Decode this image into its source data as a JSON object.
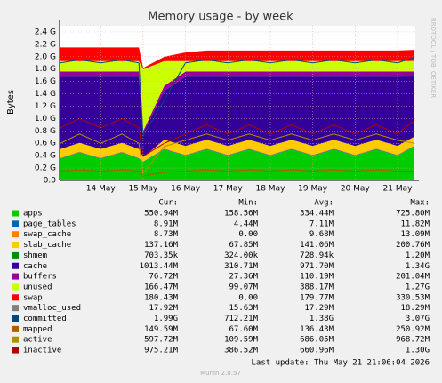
{
  "chart_data": {
    "type": "stacked-area",
    "title": "Memory usage - by week",
    "y_label": "Bytes",
    "side_label": "RRDTOOL / TOBI OETIKER",
    "stats_headers": [
      "Cur:",
      "Min:",
      "Avg:",
      "Max:"
    ],
    "last_update": "Last update: Thu May 21 21:06:04 2026",
    "footer": "Munin 2.0.57",
    "grid": true,
    "xlim": [
      13.03,
      21.42
    ],
    "xticks": [
      {
        "value": 14,
        "label": "14 May"
      },
      {
        "value": 15,
        "label": "15 May"
      },
      {
        "value": 16,
        "label": "16 May"
      },
      {
        "value": 17,
        "label": "17 May"
      },
      {
        "value": 18,
        "label": "18 May"
      },
      {
        "value": 19,
        "label": "19 May"
      },
      {
        "value": 20,
        "label": "20 May"
      },
      {
        "value": 21,
        "label": "21 May"
      }
    ],
    "ylim": [
      0,
      2.5
    ],
    "yticks": [
      {
        "value": 0,
        "label": "0.0"
      },
      {
        "value": 0.2,
        "label": "0.2 G"
      },
      {
        "value": 0.4,
        "label": "0.4 G"
      },
      {
        "value": 0.6,
        "label": "0.6 G"
      },
      {
        "value": 0.8,
        "label": "0.8 G"
      },
      {
        "value": 1.0,
        "label": "1.0 G"
      },
      {
        "value": 1.2,
        "label": "1.2 G"
      },
      {
        "value": 1.4,
        "label": "1.4 G"
      },
      {
        "value": 1.6,
        "label": "1.6 G"
      },
      {
        "value": 1.8,
        "label": "1.8 G"
      },
      {
        "value": 2.0,
        "label": "2.0 G"
      },
      {
        "value": 2.2,
        "label": "2.2 G"
      },
      {
        "value": 2.4,
        "label": "2.4 G"
      }
    ],
    "x": [
      13.05,
      13.5,
      14,
      14.5,
      14.9,
      15.0,
      15.5,
      16,
      16.5,
      17,
      17.5,
      18,
      18.5,
      19,
      19.5,
      20,
      20.5,
      21,
      21.4
    ],
    "series": [
      {
        "name": "apps",
        "color": "#00cc00",
        "stack": true,
        "cur": "550.94M",
        "min": "158.56M",
        "avg": "334.44M",
        "max": "725.80M",
        "values": [
          0.35,
          0.45,
          0.35,
          0.45,
          0.35,
          0.3,
          0.5,
          0.4,
          0.5,
          0.4,
          0.5,
          0.4,
          0.5,
          0.4,
          0.5,
          0.4,
          0.5,
          0.4,
          0.55
        ]
      },
      {
        "name": "page_tables",
        "color": "#0066b3",
        "stack": true,
        "cur": "8.91M",
        "min": "4.44M",
        "avg": "7.11M",
        "max": "11.82M",
        "values": [
          0.008,
          0.008,
          0.008,
          0.008,
          0.008,
          0.005,
          0.008,
          0.008,
          0.008,
          0.008,
          0.008,
          0.008,
          0.008,
          0.008,
          0.008,
          0.008,
          0.008,
          0.008,
          0.009
        ]
      },
      {
        "name": "swap_cache",
        "color": "#ff8000",
        "stack": true,
        "cur": "8.73M",
        "min": "0.00",
        "avg": "9.68M",
        "max": "13.09M",
        "values": [
          0.009,
          0.009,
          0.009,
          0.009,
          0.009,
          0,
          0.009,
          0.009,
          0.009,
          0.009,
          0.009,
          0.009,
          0.009,
          0.009,
          0.009,
          0.009,
          0.009,
          0.009,
          0.009
        ]
      },
      {
        "name": "slab_cache",
        "color": "#ffcc00",
        "stack": true,
        "cur": "137.16M",
        "min": "67.85M",
        "avg": "141.06M",
        "max": "200.76M",
        "values": [
          0.14,
          0.14,
          0.14,
          0.14,
          0.14,
          0.07,
          0.14,
          0.14,
          0.14,
          0.14,
          0.14,
          0.14,
          0.14,
          0.14,
          0.14,
          0.14,
          0.14,
          0.14,
          0.14
        ]
      },
      {
        "name": "shmem",
        "color": "#008f00",
        "stack": true,
        "cur": "703.35k",
        "min": "324.00k",
        "avg": "728.94k",
        "max": "1.20M",
        "values": [
          0.0007,
          0.0007,
          0.0007,
          0.0007,
          0.0007,
          0.0003,
          0.0007,
          0.0007,
          0.0007,
          0.0007,
          0.0007,
          0.0007,
          0.0007,
          0.0007,
          0.0007,
          0.0007,
          0.0007,
          0.0007,
          0.0007
        ]
      },
      {
        "name": "cache",
        "color": "#330099",
        "stack": true,
        "cur": "1013.44M",
        "min": "310.71M",
        "avg": "971.70M",
        "max": "1.34G",
        "values": [
          1.172,
          1.072,
          1.172,
          1.072,
          1.172,
          0.392,
          0.792,
          1.122,
          1.022,
          1.122,
          1.022,
          1.122,
          1.022,
          1.122,
          1.022,
          1.122,
          1.022,
          1.122,
          0.972
        ]
      },
      {
        "name": "buffers",
        "color": "#990099",
        "stack": true,
        "cur": "76.72M",
        "min": "27.36M",
        "avg": "110.19M",
        "max": "201.04M",
        "values": [
          0.08,
          0.08,
          0.08,
          0.08,
          0.08,
          0.03,
          0.08,
          0.08,
          0.08,
          0.08,
          0.08,
          0.08,
          0.08,
          0.08,
          0.08,
          0.08,
          0.08,
          0.08,
          0.08
        ]
      },
      {
        "name": "unused",
        "color": "#ccff00",
        "stack": true,
        "cur": "166.47M",
        "min": "99.07M",
        "avg": "388.17M",
        "max": "1.27G",
        "values": [
          0.17,
          0.17,
          0.17,
          0.17,
          0.17,
          1.0,
          0.4,
          0.17,
          0.17,
          0.17,
          0.17,
          0.17,
          0.17,
          0.17,
          0.17,
          0.17,
          0.17,
          0.17,
          0.17
        ]
      },
      {
        "name": "swap",
        "color": "#ff0000",
        "stack": true,
        "cur": "180.43M",
        "min": "0.00",
        "avg": "179.77M",
        "max": "330.53M",
        "values": [
          0.22,
          0.22,
          0.22,
          0.22,
          0.22,
          0.02,
          0.07,
          0.14,
          0.17,
          0.17,
          0.17,
          0.17,
          0.17,
          0.17,
          0.17,
          0.17,
          0.17,
          0.17,
          0.18
        ]
      },
      {
        "name": "vmalloc_used",
        "color": "#808080",
        "stack": false,
        "cur": "17.92M",
        "min": "15.63M",
        "avg": "17.29M",
        "max": "18.29M",
        "values": [
          0.018,
          0.018,
          0.018,
          0.018,
          0.018,
          0.016,
          0.018,
          0.018,
          0.018,
          0.018,
          0.018,
          0.018,
          0.018,
          0.018,
          0.018,
          0.018,
          0.018,
          0.018,
          0.018
        ]
      },
      {
        "name": "committed",
        "color": "#00487d",
        "stack": false,
        "cur": "1.99G",
        "min": "712.21M",
        "avg": "1.38G",
        "max": "3.07G",
        "values": [
          1.9,
          1.95,
          1.9,
          1.95,
          1.9,
          0.72,
          1.3,
          1.9,
          1.95,
          1.9,
          1.95,
          1.9,
          1.95,
          1.9,
          1.95,
          1.9,
          1.95,
          1.9,
          1.99
        ]
      },
      {
        "name": "mapped",
        "color": "#b35a00",
        "stack": false,
        "cur": "149.59M",
        "min": "67.60M",
        "avg": "136.43M",
        "max": "250.92M",
        "values": [
          0.15,
          0.17,
          0.15,
          0.17,
          0.15,
          0.07,
          0.13,
          0.15,
          0.17,
          0.15,
          0.17,
          0.15,
          0.17,
          0.15,
          0.17,
          0.15,
          0.17,
          0.15,
          0.15
        ]
      },
      {
        "name": "active",
        "color": "#b38f00",
        "stack": false,
        "cur": "597.72M",
        "min": "109.59M",
        "avg": "686.05M",
        "max": "968.72M",
        "values": [
          0.6,
          0.75,
          0.6,
          0.75,
          0.6,
          0.11,
          0.55,
          0.65,
          0.75,
          0.65,
          0.75,
          0.65,
          0.75,
          0.65,
          0.75,
          0.65,
          0.75,
          0.65,
          0.6
        ]
      },
      {
        "name": "inactive",
        "color": "#b30000",
        "stack": false,
        "cur": "975.21M",
        "min": "386.52M",
        "avg": "660.96M",
        "max": "1.30G",
        "values": [
          0.85,
          1.0,
          0.85,
          1.0,
          0.85,
          0.39,
          0.6,
          0.75,
          0.9,
          0.75,
          0.9,
          0.75,
          0.9,
          0.75,
          0.9,
          0.75,
          0.9,
          0.75,
          0.97
        ]
      }
    ]
  }
}
